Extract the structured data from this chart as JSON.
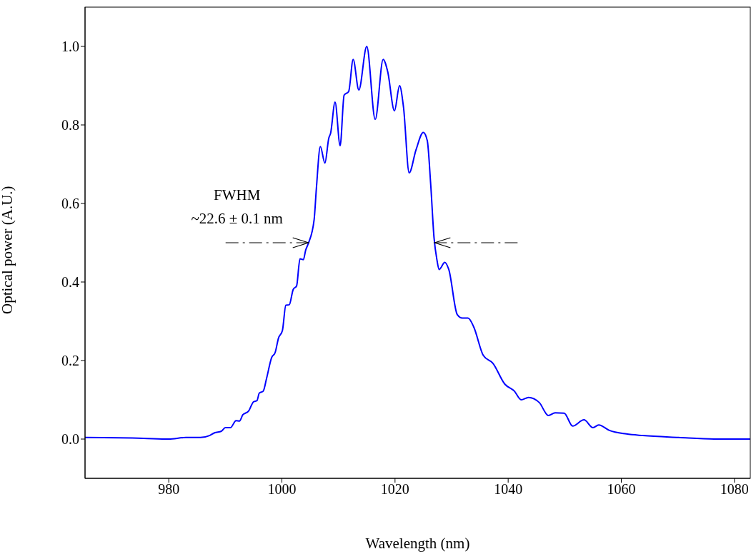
{
  "chart_data": {
    "type": "line",
    "xlabel": "Wavelength (nm)",
    "ylabel": "Optical power (A.U.)",
    "annotations": [
      "FWHM",
      {
        "text": "~22.6 ± 0.1 nm",
        "x": 1004.7,
        "y": 0.5
      }
    ],
    "xlim": [
      965.2,
      1082.8
    ],
    "xticks": [
      980,
      1000,
      1020,
      1040,
      1060,
      1080
    ],
    "ylim": [
      -0.1,
      1.1
    ],
    "yticks": [
      {
        "value": 0,
        "label": "0.0"
      },
      0.2,
      0.4,
      0.6,
      0.8,
      {
        "value": 1,
        "label": "1.0"
      }
    ],
    "grid": false,
    "legend": false,
    "marker": "none",
    "line_style": "solid",
    "series": [
      {
        "color": "#0000ff",
        "x": [
          965.2,
          975.5,
          980,
          983,
          985.6,
          987.2,
          988.1,
          989.3,
          990,
          990.9,
          991.9,
          992.5,
          993.1,
          994.1,
          995,
          995.6,
          996,
          996.7,
          997.3,
          998.2,
          998.8,
          999.4,
          1000.1,
          1000.7,
          1001.3,
          1002,
          1002.6,
          1003.2,
          1003.8,
          1004.2,
          1004.7,
          1005.7,
          1006.1,
          1006.8,
          1007.6,
          1008.3,
          1008.6,
          1009.4,
          1010.3,
          1011,
          1011.8,
          1012.6,
          1013.6,
          1015,
          1016.5,
          1017.9,
          1018.7,
          1019.9,
          1020.8,
          1021.5,
          1022.5,
          1023.7,
          1025,
          1025.7,
          1026.3,
          1026.9,
          1027.4,
          1027.8,
          1028.8,
          1029.5,
          1031,
          1031.9,
          1032.9,
          1033.9,
          1035.6,
          1037.3,
          1039.4,
          1041.1,
          1042.3,
          1043.6,
          1045.5,
          1047.1,
          1048.3,
          1049.9,
          1051.4,
          1053.4,
          1055,
          1056,
          1057.9,
          1060.9,
          1063.8,
          1070.1,
          1076.4,
          1082.8
        ],
        "values": [
          0.004,
          0.002,
          0,
          0.004,
          0.004,
          0.009,
          0.016,
          0.02,
          0.029,
          0.029,
          0.047,
          0.046,
          0.062,
          0.071,
          0.095,
          0.098,
          0.117,
          0.122,
          0.155,
          0.208,
          0.22,
          0.257,
          0.277,
          0.341,
          0.342,
          0.381,
          0.39,
          0.459,
          0.457,
          0.481,
          0.499,
          0.559,
          0.639,
          0.745,
          0.703,
          0.767,
          0.778,
          0.858,
          0.747,
          0.876,
          0.885,
          0.967,
          0.889,
          1.0,
          0.814,
          0.967,
          0.936,
          0.836,
          0.9,
          0.845,
          0.678,
          0.736,
          0.781,
          0.76,
          0.65,
          0.512,
          0.457,
          0.432,
          0.45,
          0.432,
          0.317,
          0.308,
          0.308,
          0.286,
          0.213,
          0.193,
          0.14,
          0.122,
          0.1,
          0.106,
          0.093,
          0.06,
          0.067,
          0.066,
          0.033,
          0.049,
          0.029,
          0.036,
          0.022,
          0.013,
          0.009,
          0.004,
          0,
          0
        ]
      }
    ]
  }
}
